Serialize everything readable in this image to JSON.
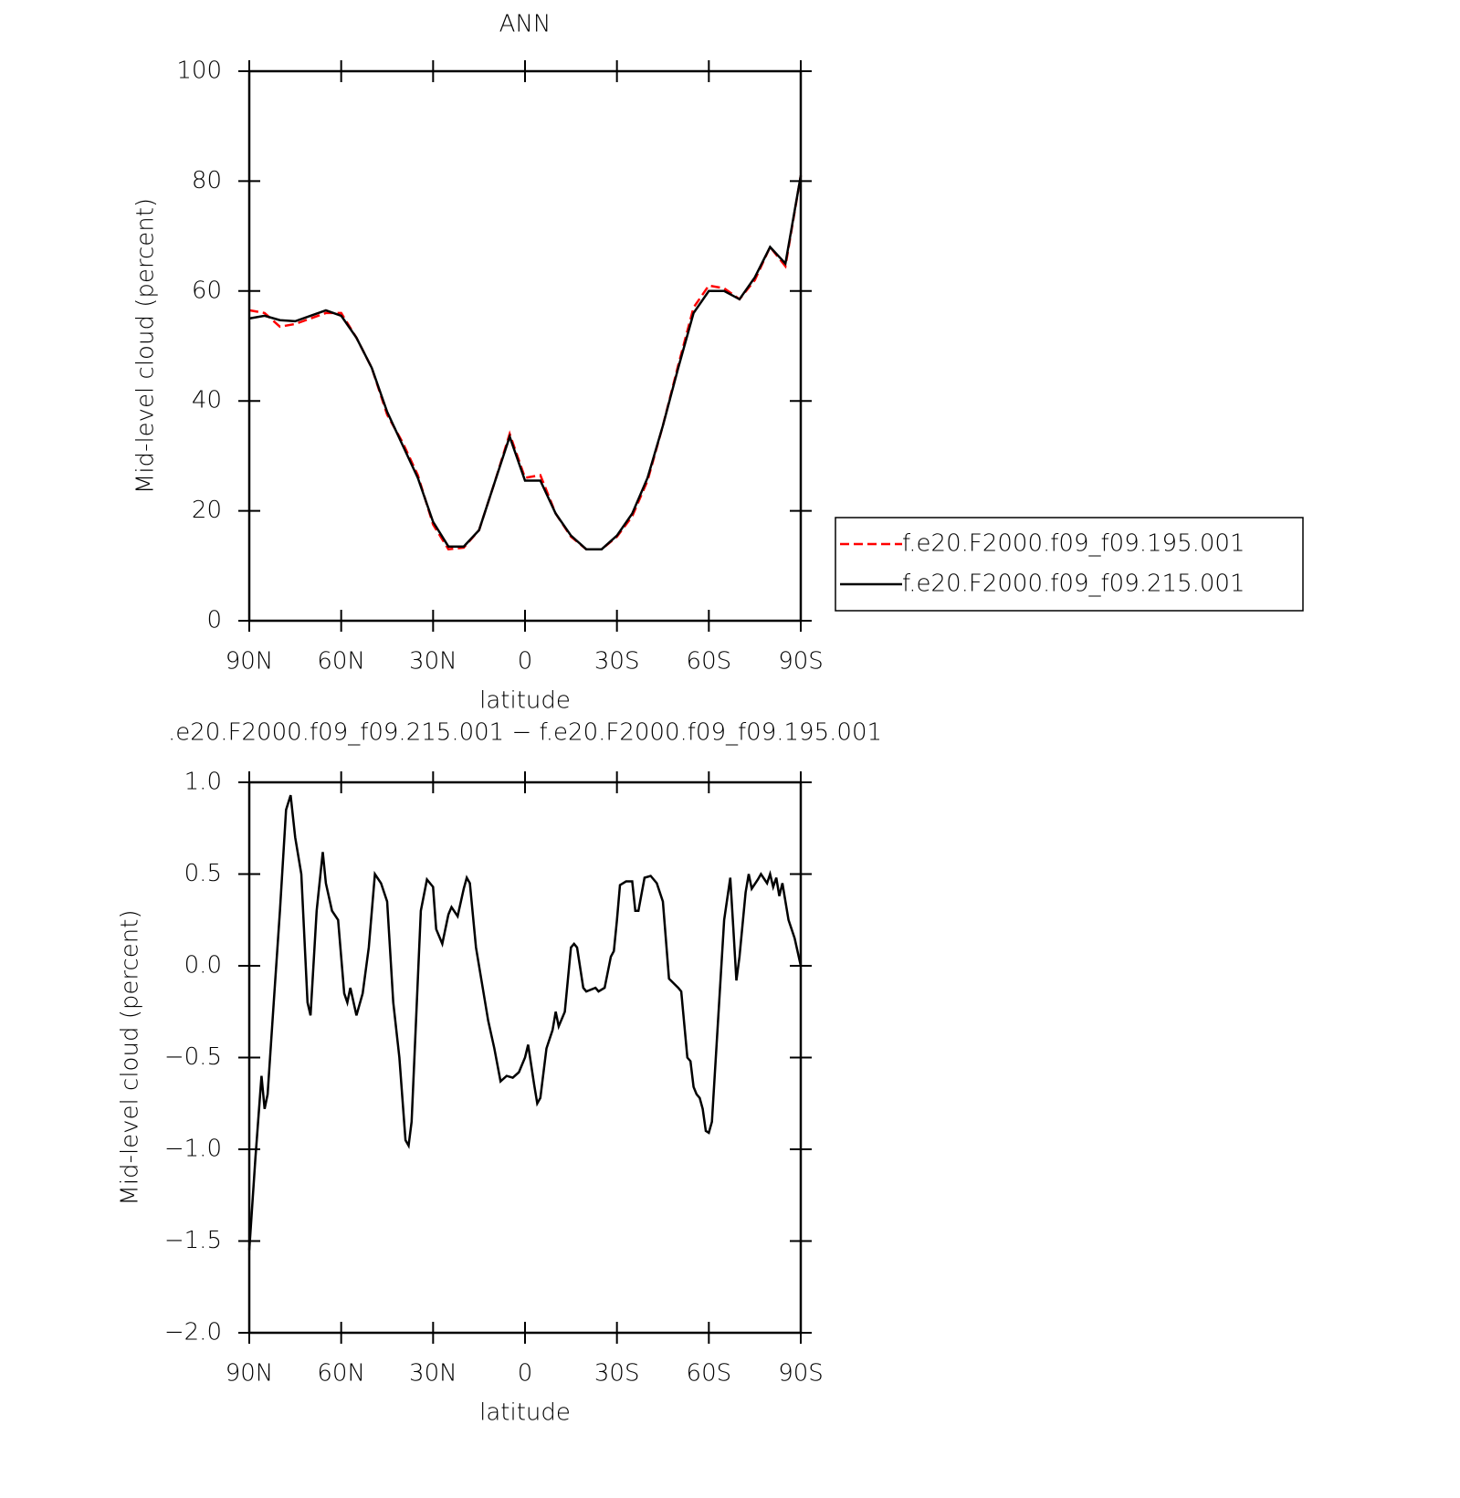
{
  "chart_data": [
    {
      "type": "line",
      "title": "ANN",
      "x_label": "latitude",
      "y_label": "Mid-level cloud (percent)",
      "xlim": [
        90,
        -90
      ],
      "xticks": [
        {
          "value": 90,
          "label": "90N"
        },
        {
          "value": 60,
          "label": "60N"
        },
        {
          "value": 30,
          "label": "30N"
        },
        0,
        {
          "value": -30,
          "label": "30S"
        },
        {
          "value": -60,
          "label": "60S"
        },
        {
          "value": -90,
          "label": "90S"
        }
      ],
      "ylim": [
        0,
        100
      ],
      "yticks": [
        0,
        20,
        40,
        60,
        80,
        100
      ],
      "x": [
        90,
        85,
        80,
        75,
        70,
        65,
        60,
        55,
        50,
        45,
        40,
        35,
        30,
        25,
        20,
        15,
        10,
        5,
        0,
        -5,
        -10,
        -15,
        -20,
        -25,
        -30,
        -35,
        -40,
        -45,
        -50,
        -55,
        -60,
        -65,
        -70,
        -75,
        -80,
        -85,
        -90
      ],
      "legend": "right",
      "series": [
        {
          "name": "f.e20.F2000.f09_f09.195.001",
          "color": "#ff0000",
          "dash": true,
          "values": [
            56.5,
            56,
            53.5,
            54,
            55,
            56,
            56,
            51.5,
            46,
            37.5,
            32.5,
            26.5,
            17.5,
            13,
            13.3,
            16.5,
            25,
            34,
            26,
            26.5,
            19.5,
            15.3,
            13,
            13,
            15.3,
            19,
            25.5,
            35.5,
            46.5,
            57,
            61,
            60.5,
            58.5,
            62,
            68,
            64.5,
            81
          ]
        },
        {
          "name": "f.e20.F2000.f09_f09.215.001",
          "color": "#000000",
          "dash": false,
          "values": [
            55,
            55.5,
            54.7,
            54.5,
            55.5,
            56.5,
            55.5,
            51.5,
            46,
            38,
            32,
            26,
            18,
            13.5,
            13.5,
            16.5,
            25,
            33.5,
            25.5,
            25.5,
            19.5,
            15.5,
            13,
            13,
            15.5,
            19.5,
            26,
            35.5,
            46,
            56,
            60,
            60,
            58.5,
            62.5,
            68,
            65,
            81
          ]
        }
      ]
    },
    {
      "type": "line",
      "title": ".e20.F2000.f09_f09.215.001 − f.e20.F2000.f09_f09.195.001",
      "x_label": "latitude",
      "y_label": "Mid-level cloud (percent)",
      "xlim": [
        90,
        -90
      ],
      "xticks": [
        {
          "value": 90,
          "label": "90N"
        },
        {
          "value": 60,
          "label": "60N"
        },
        {
          "value": 30,
          "label": "30N"
        },
        0,
        {
          "value": -30,
          "label": "30S"
        },
        {
          "value": -60,
          "label": "60S"
        },
        {
          "value": -90,
          "label": "90S"
        }
      ],
      "ylim": [
        -2,
        1
      ],
      "yticks": [
        {
          "value": -2,
          "label": "−2.0"
        },
        {
          "value": -1.5,
          "label": "−1.5"
        },
        {
          "value": -1,
          "label": "−1.0"
        },
        {
          "value": -0.5,
          "label": "−0.5"
        },
        {
          "value": 0,
          "label": "0.0"
        },
        0.5,
        {
          "value": 1,
          "label": "1.0"
        }
      ],
      "color": "#000000",
      "x": [
        90,
        88,
        86,
        85,
        84,
        82,
        80,
        78,
        76.5,
        75,
        73,
        71,
        70,
        68,
        66,
        65,
        63,
        61,
        59,
        58,
        57,
        55,
        53,
        51,
        49,
        47,
        45,
        43,
        41,
        39,
        38,
        37,
        34,
        32,
        30,
        29,
        27,
        25,
        24,
        22,
        20,
        19,
        18,
        16,
        14,
        12,
        10,
        8,
        6,
        4,
        2,
        0,
        -1,
        -3,
        -4,
        -5,
        -7,
        -9,
        -10,
        -11,
        -13,
        -15,
        -16,
        -17,
        -19,
        -20,
        -23,
        -24,
        -26,
        -28,
        -29,
        -30,
        -31,
        -33,
        -35,
        -36,
        -37,
        -39,
        -41,
        -43,
        -45,
        -47,
        -50,
        -51,
        -53,
        -54,
        -55,
        -56,
        -57,
        -58,
        -59,
        -60,
        -61,
        -63,
        -65,
        -67,
        -68,
        -69,
        -70,
        -72,
        -73,
        -74,
        -76,
        -77,
        -79,
        -80,
        -81,
        -82,
        -83,
        -84,
        -86,
        -88,
        -90
      ],
      "values": [
        -1.55,
        -1.05,
        -0.6,
        -0.78,
        -0.7,
        -0.2,
        0.3,
        0.85,
        0.93,
        0.7,
        0.5,
        -0.2,
        -0.27,
        0.3,
        0.62,
        0.45,
        0.3,
        0.25,
        -0.15,
        -0.2,
        -0.12,
        -0.27,
        -0.15,
        0.1,
        0.5,
        0.45,
        0.35,
        -0.2,
        -0.5,
        -0.95,
        -0.98,
        -0.85,
        0.3,
        0.47,
        0.43,
        0.2,
        0.12,
        0.28,
        0.32,
        0.27,
        0.42,
        0.48,
        0.45,
        0.1,
        -0.1,
        -0.3,
        -0.45,
        -0.63,
        -0.6,
        -0.61,
        -0.58,
        -0.5,
        -0.43,
        -0.65,
        -0.75,
        -0.72,
        -0.45,
        -0.35,
        -0.25,
        -0.33,
        -0.25,
        0.1,
        0.12,
        0.1,
        -0.12,
        -0.14,
        -0.12,
        -0.14,
        -0.12,
        0.05,
        0.08,
        0.25,
        0.44,
        0.46,
        0.46,
        0.3,
        0.3,
        0.48,
        0.49,
        0.45,
        0.35,
        -0.07,
        -0.12,
        -0.14,
        -0.5,
        -0.52,
        -0.66,
        -0.7,
        -0.72,
        -0.78,
        -0.9,
        -0.91,
        -0.85,
        -0.3,
        0.25,
        0.48,
        0.2,
        -0.08,
        0.05,
        0.4,
        0.5,
        0.42,
        0.47,
        0.5,
        0.45,
        0.5,
        0.43,
        0.48,
        0.38,
        0.45,
        0.25,
        0.15,
        0
      ]
    }
  ]
}
